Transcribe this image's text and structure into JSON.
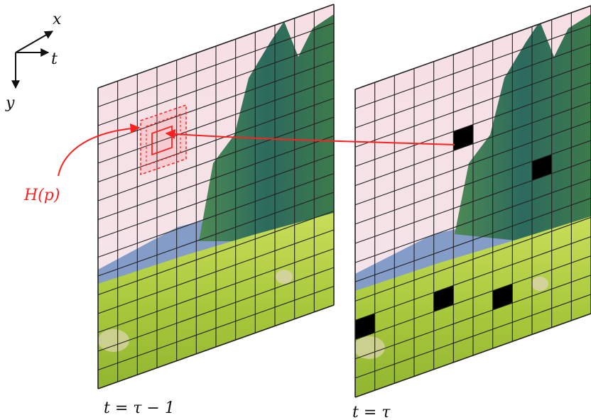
{
  "axes": {
    "x_label": "x",
    "t_label": "t",
    "y_label": "y"
  },
  "frames": [
    {
      "time_label": "t = τ − 1"
    },
    {
      "time_label": "t = τ"
    }
  ],
  "annotation": {
    "label": "H(p)"
  },
  "grid": {
    "cols": 12,
    "rows": 16
  },
  "masked_cells": [
    {
      "col": 5,
      "row": 4
    },
    {
      "col": 9,
      "row": 7
    },
    {
      "col": 0,
      "row": 12
    },
    {
      "col": 4,
      "row": 12
    },
    {
      "col": 7,
      "row": 13
    }
  ],
  "colors": {
    "annotation": "#ff2020",
    "grid_line": "#222222",
    "mask": "#000000",
    "sky": "#f6dde2",
    "mountain": "#6f8fc2",
    "tree": "#2f6f5c",
    "grass": "#b9d64a"
  }
}
